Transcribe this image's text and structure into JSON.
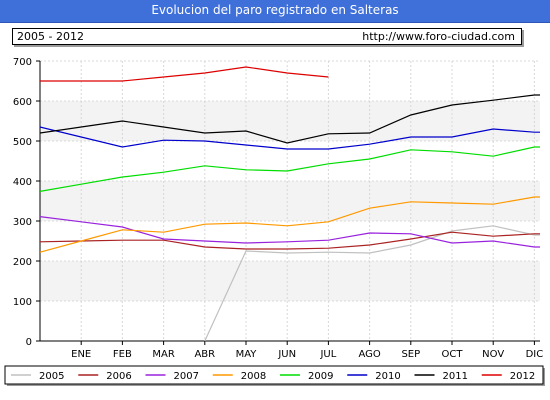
{
  "header": {
    "title": "Evolucion del paro registrado en Salteras",
    "period": "2005 - 2012",
    "url": "http://www.foro-ciudad.com"
  },
  "chart_data": {
    "type": "line",
    "title": "Evolucion del paro registrado en Salteras",
    "categories": [
      "ENE",
      "FEB",
      "MAR",
      "ABR",
      "MAY",
      "JUN",
      "JUL",
      "AGO",
      "SEP",
      "OCT",
      "NOV",
      "DIC"
    ],
    "ylim": [
      0,
      700
    ],
    "yticks": [
      0,
      100,
      200,
      300,
      400,
      500,
      600,
      700
    ],
    "grid": true,
    "legend_position": "bottom",
    "series": [
      {
        "name": "2005",
        "color": "#c0c0c0",
        "values": [
          null,
          null,
          null,
          0,
          225,
          220,
          222,
          220,
          240,
          275,
          288,
          265
        ]
      },
      {
        "name": "2006",
        "color": "#aa2222",
        "values": [
          250,
          252,
          252,
          235,
          230,
          230,
          232,
          240,
          255,
          272,
          262,
          268
        ]
      },
      {
        "name": "2007",
        "color": "#9922dd",
        "values": [
          298,
          285,
          255,
          250,
          245,
          248,
          252,
          270,
          268,
          245,
          250,
          235
        ]
      },
      {
        "name": "2008",
        "color": "#ff9900",
        "values": [
          250,
          278,
          272,
          292,
          295,
          288,
          298,
          332,
          348,
          345,
          342,
          360
        ]
      },
      {
        "name": "2009",
        "color": "#00dd00",
        "values": [
          392,
          410,
          422,
          438,
          428,
          425,
          443,
          455,
          478,
          473,
          462,
          485
        ]
      },
      {
        "name": "2010",
        "color": "#0000cc",
        "values": [
          510,
          485,
          502,
          500,
          490,
          480,
          480,
          492,
          510,
          510,
          530,
          522
        ]
      },
      {
        "name": "2011",
        "color": "#000000",
        "values": [
          535,
          550,
          535,
          520,
          525,
          495,
          518,
          520,
          565,
          590,
          602,
          615
        ]
      },
      {
        "name": "2012",
        "color": "#dd0000",
        "values": [
          650,
          650,
          660,
          670,
          685,
          670,
          660,
          null,
          null,
          null,
          null,
          null
        ]
      }
    ]
  }
}
